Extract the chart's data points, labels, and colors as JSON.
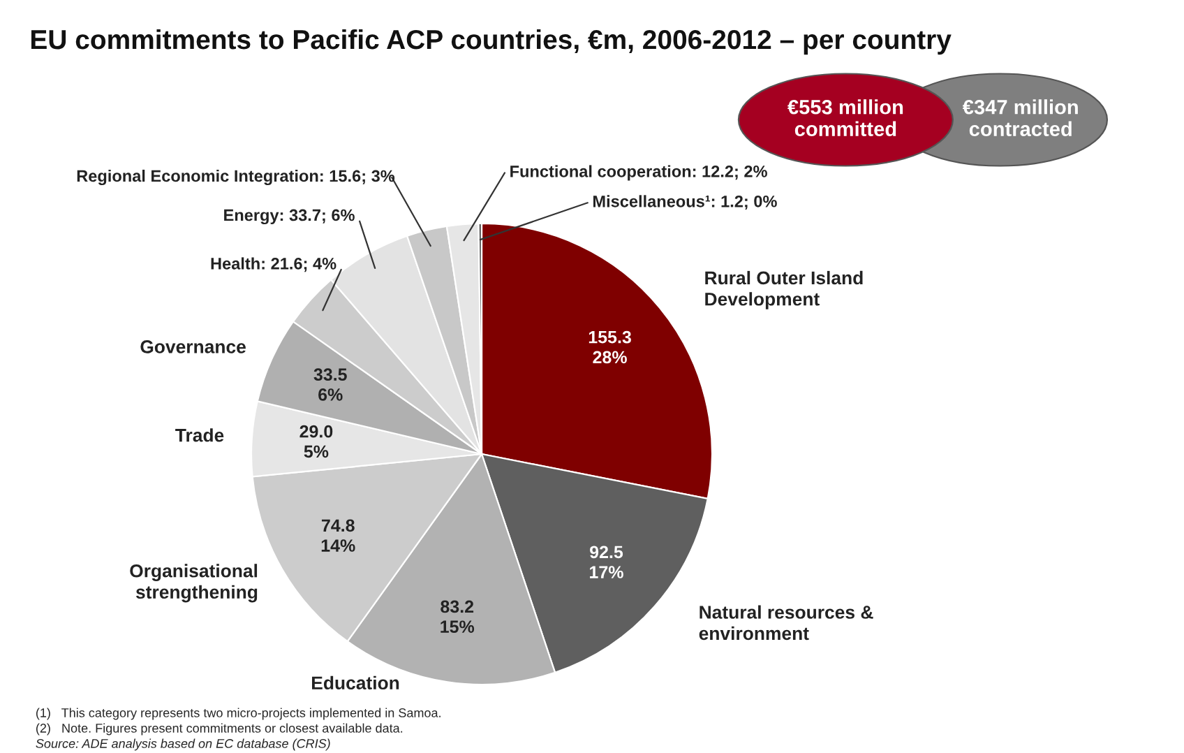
{
  "chart_data": {
    "type": "pie",
    "title": "EU commitments to Pacific ACP countries, €m, 2006-2012 – per country",
    "categories": [
      "Rural Outer Island\nDevelopment",
      "Natural resources &\nenvironment",
      "Education",
      "Organisational\nstrengthening",
      "Trade",
      "Governance",
      "Health",
      "Energy",
      "Regional Economic Integration",
      "Functional cooperation",
      "Miscellaneous¹"
    ],
    "values": [
      155.3,
      92.5,
      83.2,
      74.8,
      29.0,
      33.5,
      21.6,
      33.7,
      15.6,
      12.2,
      1.2
    ],
    "colors": [
      "#7f0000",
      "#5f5f5f",
      "#b2b2b2",
      "#cccccc",
      "#e6e6e6",
      "#b0b0b0",
      "#cccccc",
      "#e3e3e3",
      "#c8c8c8",
      "#e6e6e6",
      "#5a5a5a"
    ],
    "value_labels": [
      "155.3\n28%",
      "92.5\n17%",
      "83.2\n15%",
      "74.8\n14%",
      "29.0\n5%",
      "33.5\n6%",
      "21.6; 4%",
      "33.7; 6%",
      "15.6; 3%",
      "12.2; 2%",
      "1.2; 0%"
    ],
    "annotations": [
      "€553 million\ncommitted",
      "€347 million\ncontracted",
      "(1)   This category represents two micro-projects implemented in Samoa.",
      "(2)   Note. Figures present commitments or closest available data.",
      "Source: ADE analysis based on EC database (CRIS)"
    ]
  }
}
